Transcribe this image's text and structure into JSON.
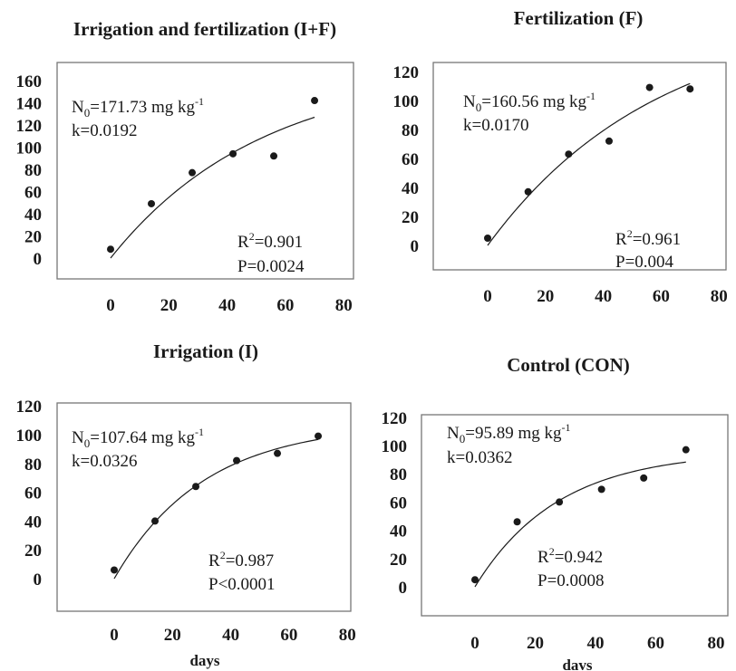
{
  "chart_data": [
    {
      "type": "scatter",
      "title": "Irrigation and fertilization (I+F)",
      "xlabel": "",
      "ylabel": "",
      "xlim": [
        -20,
        80
      ],
      "ylim": [
        -20,
        160
      ],
      "x_ticks": [
        0,
        20,
        40,
        60,
        80
      ],
      "y_ticks": [
        0,
        20,
        40,
        60,
        80,
        100,
        120,
        140,
        160
      ],
      "series": [
        {
          "x": [
            0,
            14,
            28,
            42,
            56,
            70
          ],
          "y": [
            8,
            49,
            77,
            94,
            92,
            142
          ]
        }
      ],
      "fit": {
        "model": "N0*(1-exp(-k*t))",
        "N0": 171.73,
        "k": 0.0192
      },
      "annotations": {
        "n0_label": "N",
        "n0_sub": "0",
        "n0_value": "=171.73 mg kg",
        "n0_sup": "-1",
        "k_label": "k=0.0192",
        "r2_prefix": "R",
        "r2_sup": "2",
        "r2_value": "=0.901",
        "p_label": "P=0.0024"
      }
    },
    {
      "type": "scatter",
      "title": "Fertilization (F)",
      "xlabel": "",
      "ylabel": "",
      "xlim": [
        -20,
        80
      ],
      "ylim": [
        -20,
        120
      ],
      "x_ticks": [
        0,
        20,
        40,
        60,
        80
      ],
      "y_ticks": [
        0,
        20,
        40,
        60,
        80,
        100,
        120
      ],
      "series": [
        {
          "x": [
            0,
            14,
            28,
            42,
            56,
            70
          ],
          "y": [
            5,
            37,
            63,
            72,
            109,
            108
          ]
        }
      ],
      "fit": {
        "model": "N0*(1-exp(-k*t))",
        "N0": 160.56,
        "k": 0.017
      },
      "annotations": {
        "n0_label": "N",
        "n0_sub": "0",
        "n0_value": "=160.56 mg kg",
        "n0_sup": "-1",
        "k_label": "k=0.0170",
        "r2_prefix": "R",
        "r2_sup": "2",
        "r2_value": "=0.961",
        "p_label": "P=0.004"
      }
    },
    {
      "type": "scatter",
      "title": "Irrigation (I)",
      "xlabel": "days",
      "ylabel": "",
      "xlim": [
        -20,
        80
      ],
      "ylim": [
        -20,
        120
      ],
      "x_ticks": [
        0,
        20,
        40,
        60,
        80
      ],
      "y_ticks": [
        0,
        20,
        40,
        60,
        80,
        100,
        120
      ],
      "series": [
        {
          "x": [
            0,
            14,
            28,
            42,
            56,
            70
          ],
          "y": [
            6,
            40,
            64,
            82,
            87,
            99
          ]
        }
      ],
      "fit": {
        "model": "N0*(1-exp(-k*t))",
        "N0": 107.64,
        "k": 0.0326
      },
      "annotations": {
        "n0_label": "N",
        "n0_sub": "0",
        "n0_value": "=107.64 mg kg",
        "n0_sup": "-1",
        "k_label": "k=0.0326",
        "r2_prefix": "R",
        "r2_sup": "2",
        "r2_value": "=0.987",
        "p_label": "P<0.0001"
      }
    },
    {
      "type": "scatter",
      "title": "Control (CON)",
      "xlabel": "davs",
      "ylabel": "",
      "xlim": [
        -20,
        80
      ],
      "ylim": [
        -20,
        120
      ],
      "x_ticks": [
        0,
        20,
        40,
        60,
        80
      ],
      "y_ticks": [
        0,
        20,
        40,
        60,
        80,
        100,
        120
      ],
      "series": [
        {
          "x": [
            0,
            14,
            28,
            42,
            56,
            70
          ],
          "y": [
            5,
            46,
            60,
            69,
            77,
            97
          ]
        }
      ],
      "fit": {
        "model": "N0*(1-exp(-k*t))",
        "N0": 95.89,
        "k": 0.0362
      },
      "annotations": {
        "n0_label": "N",
        "n0_sub": "0",
        "n0_value": "=95.89 mg kg",
        "n0_sup": "-1",
        "k_label": "k=0.0362",
        "r2_prefix": "R",
        "r2_sup": "2",
        "r2_value": "=0.942",
        "p_label": "P=0.0008"
      }
    }
  ]
}
